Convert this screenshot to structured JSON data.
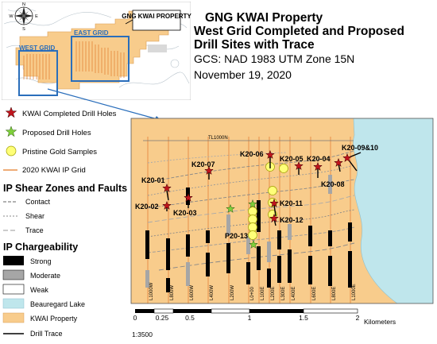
{
  "title_lines": [
    "GNG KWAI Property",
    "West Grid Completed and Proposed",
    "Drill Sites with Trace"
  ],
  "subtitle_lines": [
    "GCS: NAD 1983 UTM Zone 15N",
    "November 19, 2020"
  ],
  "inset": {
    "property_label": "GNG KWAI PROPERTY",
    "west_grid_label": "WEST GRID",
    "east_grid_label": "EAST GRID",
    "compass_letters": {
      "n": "N",
      "s": "S",
      "e": "E",
      "w": "W"
    }
  },
  "legend": {
    "completed": "KWAI Completed Drill Holes",
    "proposed": "Proposed Drill Holes",
    "pristine": "Pristine Gold Samples",
    "ip_grid": "2020 KWAI IP Grid",
    "shear_heading": "IP Shear Zones and Faults",
    "contact": "Contact",
    "shear": "Shear",
    "trace": "Trace",
    "charge_heading": "IP Chargeability",
    "strong": "Strong",
    "moderate": "Moderate",
    "weak": "Weak",
    "lake": "Beauregard Lake",
    "property": "KWAI Property",
    "drill_trace": "Drill Trace"
  },
  "colors": {
    "property_fill": "#f8cc8c",
    "grid_line": "#e8914a",
    "lake": "#bfe6ec",
    "completed_star": "#c0141c",
    "proposed_star": "#7ed03a",
    "pristine": "#ffff78",
    "strong": "#000000",
    "moderate": "#a6a6a6",
    "weak": "#ffffff",
    "inset_blue": "#2a6ebb"
  },
  "map": {
    "line_top": "TL1000N",
    "line_labels": [
      "L1000W",
      "L800W",
      "L600W",
      "L400W",
      "L200W",
      "L0+00",
      "L100E",
      "L200E",
      "L300E",
      "L400E",
      "L600E",
      "L800E",
      "L1000E"
    ],
    "holes": [
      "K20-01",
      "K20-02",
      "K20-03",
      "K20-07",
      "K20-06",
      "K20-05",
      "K20-04",
      "K20-08",
      "K20-09&10",
      "K20-11",
      "K20-12",
      "P20-13"
    ]
  },
  "scale": {
    "ticks": [
      "0",
      "0.25",
      "0.5",
      "1",
      "1.5",
      "2"
    ],
    "unit": "Kilometers",
    "ratio": "1:3500"
  }
}
